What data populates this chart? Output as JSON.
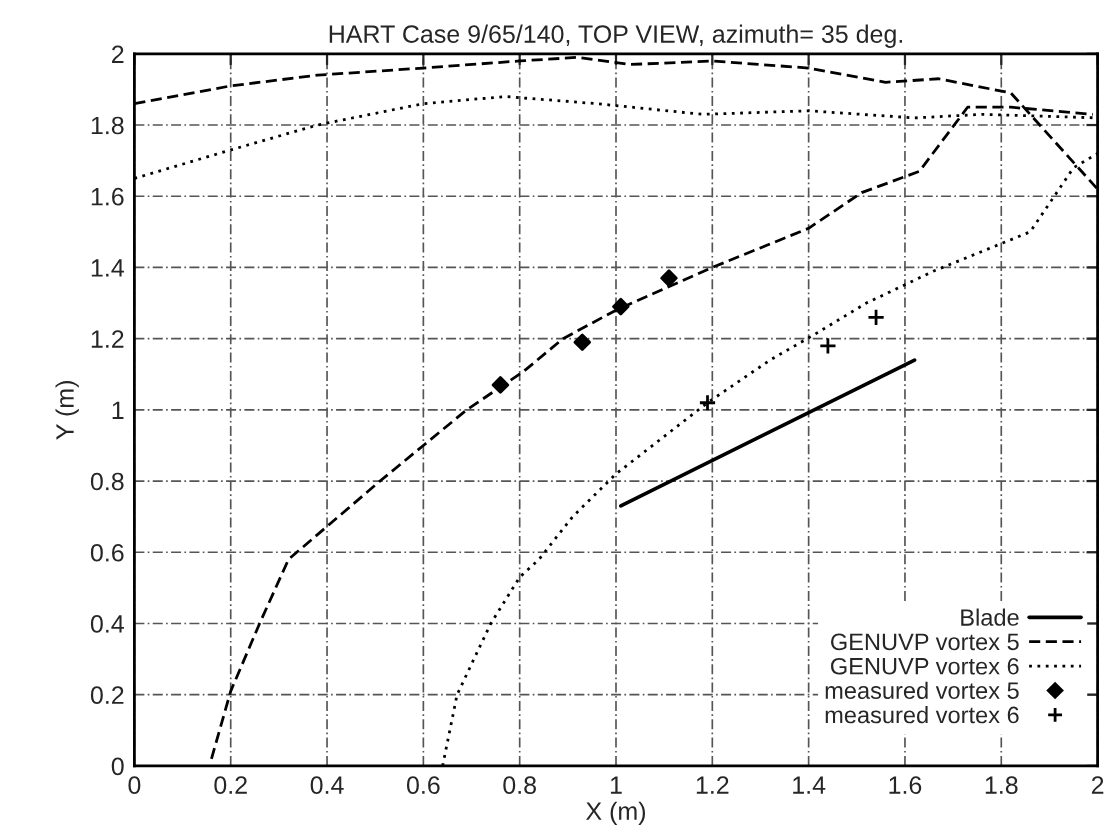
{
  "chart_data": {
    "type": "line",
    "title": "HART Case 9/65/140, TOP VIEW, azimuth= 35 deg.",
    "xlabel": "X (m)",
    "ylabel": "Y (m)",
    "xlim": [
      0,
      2
    ],
    "ylim": [
      0,
      2
    ],
    "xticks": [
      0,
      0.2,
      0.4,
      0.6,
      0.8,
      1,
      1.2,
      1.4,
      1.6,
      1.8,
      2
    ],
    "yticks": [
      0,
      0.2,
      0.4,
      0.6,
      0.8,
      1,
      1.2,
      1.4,
      1.6,
      1.8,
      2
    ],
    "grid": true,
    "legend": "bottom right",
    "series": [
      {
        "name": "Blade",
        "line_style": "solid",
        "color": "#000000",
        "x": [
          1.01,
          1.62
        ],
        "values": [
          0.73,
          1.14
        ]
      },
      {
        "name": "GENUVP vortex 5",
        "line_style": "dashed",
        "color": "#000000",
        "x": [
          0.16,
          0.2,
          0.26,
          0.32,
          0.51,
          0.6,
          0.69,
          0.81,
          0.89,
          1.0,
          1.2,
          1.4,
          1.51,
          1.63,
          1.73,
          1.82,
          1.99,
          null,
          0,
          0.2,
          0.38,
          0.6,
          0.8,
          0.92,
          1.03,
          1.2,
          1.4,
          1.56,
          1.67,
          1.82,
          2.0
        ],
        "values": [
          0.02,
          0.21,
          0.4,
          0.58,
          0.8,
          0.9,
          1.0,
          1.11,
          1.2,
          1.28,
          1.4,
          1.51,
          1.61,
          1.67,
          1.85,
          1.85,
          1.83,
          null,
          1.86,
          1.91,
          1.94,
          1.96,
          1.98,
          1.99,
          1.97,
          1.98,
          1.96,
          1.92,
          1.93,
          1.89,
          1.62
        ]
      },
      {
        "name": "GENUVP vortex 6",
        "line_style": "dotted",
        "color": "#000000",
        "x": [
          0.64,
          0.67,
          0.74,
          0.8,
          0.84,
          0.91,
          1.0,
          1.19,
          1.32,
          1.41,
          1.52,
          1.66,
          1.86,
          1.95,
          2.0,
          null,
          0,
          0.2,
          0.38,
          0.6,
          0.77,
          0.96,
          1.18,
          1.4,
          1.62,
          1.76,
          2.0
        ],
        "values": [
          0,
          0.2,
          0.4,
          0.53,
          0.58,
          0.7,
          0.82,
          1.02,
          1.14,
          1.21,
          1.3,
          1.39,
          1.5,
          1.68,
          1.72,
          null,
          1.65,
          1.73,
          1.8,
          1.86,
          1.88,
          1.86,
          1.83,
          1.84,
          1.82,
          1.83,
          1.82
        ]
      },
      {
        "name": "measured vortex 5",
        "type": "scatter",
        "marker": "diamond",
        "color": "#000000",
        "x": [
          0.76,
          0.93,
          1.01,
          1.11
        ],
        "values": [
          1.07,
          1.19,
          1.29,
          1.37
        ]
      },
      {
        "name": "measured vortex 6",
        "type": "scatter",
        "marker": "cross",
        "color": "#000000",
        "x": [
          1.19,
          1.44,
          1.54
        ],
        "values": [
          1.02,
          1.18,
          1.26
        ]
      }
    ]
  }
}
